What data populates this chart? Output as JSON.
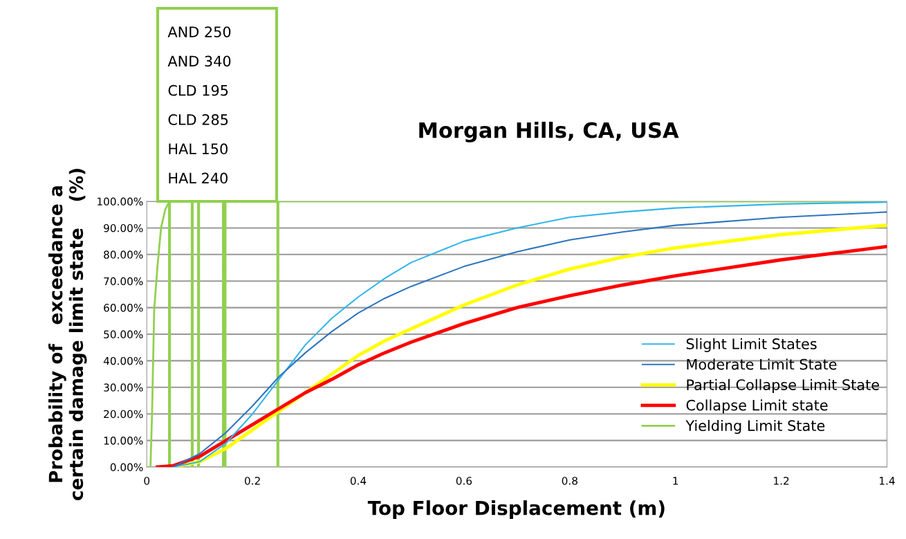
{
  "chart_data": {
    "type": "line",
    "title": "Morgan Hills, CA, USA",
    "xlabel": "Top Floor Displacement (m)",
    "ylabel": "Probability of   exceedance a\ncertain damage limit state    (%)",
    "xlim": [
      0,
      1.4
    ],
    "xticks": [
      0,
      0.2,
      0.4,
      0.6,
      0.8,
      1,
      1.2,
      1.4
    ],
    "ylim": [
      0,
      100
    ],
    "yticks": [
      {
        "value": 0,
        "label": "0.00%"
      },
      {
        "value": 10,
        "label": "10.00%"
      },
      {
        "value": 20,
        "label": "20.00%"
      },
      {
        "value": 30,
        "label": "30.00%"
      },
      {
        "value": 40,
        "label": "40.00%"
      },
      {
        "value": 50,
        "label": "50.00%"
      },
      {
        "value": 60,
        "label": "60.00%"
      },
      {
        "value": 70,
        "label": "70.00%"
      },
      {
        "value": 80,
        "label": "80.00%"
      },
      {
        "value": 90,
        "label": "90.00%"
      },
      {
        "value": 100,
        "label": "100.00%"
      }
    ],
    "grid": "y",
    "legend": "right",
    "marker": "none",
    "line_style": "solid",
    "series": [
      {
        "name": "Slight Limit States",
        "color": "#33b5ea",
        "x": [
          0.05,
          0.1,
          0.15,
          0.2,
          0.25,
          0.3,
          0.35,
          0.4,
          0.45,
          0.5,
          0.55,
          0.6,
          0.7,
          0.8,
          0.9,
          1.0,
          1.2,
          1.4
        ],
        "values": [
          0,
          2,
          9,
          20,
          33,
          46,
          56,
          64,
          71,
          77,
          81,
          85,
          90,
          94,
          96,
          97.5,
          99,
          99.7
        ]
      },
      {
        "name": "Moderate Limit State",
        "color": "#2e75c0",
        "x": [
          0.05,
          0.1,
          0.15,
          0.2,
          0.25,
          0.3,
          0.35,
          0.4,
          0.45,
          0.5,
          0.6,
          0.7,
          0.8,
          0.9,
          1.0,
          1.2,
          1.4
        ],
        "values": [
          0,
          5,
          13,
          23,
          34,
          43,
          51,
          58,
          63.5,
          68,
          75.5,
          81,
          85.5,
          88.5,
          91,
          94,
          96
        ]
      },
      {
        "name": "Partial Collapse Limit State",
        "color": "#ffff00",
        "x": [
          0.05,
          0.1,
          0.15,
          0.2,
          0.25,
          0.3,
          0.35,
          0.4,
          0.45,
          0.5,
          0.6,
          0.7,
          0.8,
          0.9,
          1.0,
          1.2,
          1.4
        ],
        "values": [
          0,
          2,
          7,
          14,
          21,
          28,
          35,
          42,
          47.5,
          52,
          61,
          68.5,
          74.5,
          79,
          82.5,
          87.5,
          91
        ]
      },
      {
        "name": "Collapse Limit state",
        "color": "#ff0000",
        "x": [
          0.02,
          0.05,
          0.1,
          0.15,
          0.2,
          0.25,
          0.3,
          0.35,
          0.4,
          0.45,
          0.5,
          0.6,
          0.7,
          0.8,
          0.9,
          1.0,
          1.2,
          1.4
        ],
        "values": [
          0,
          0.5,
          4,
          10,
          16,
          22,
          28,
          33,
          38.5,
          43,
          47,
          54,
          60,
          64.5,
          68.5,
          72,
          78,
          83
        ]
      },
      {
        "name": "Yielding Limit State",
        "color": "#92d050",
        "x": [
          0.007,
          0.01,
          0.014,
          0.02,
          0.027,
          0.035,
          0.043,
          1.4
        ],
        "values": [
          0,
          20,
          59,
          75,
          90,
          97,
          100,
          100
        ]
      }
    ],
    "ref_lines": [
      {
        "axis": "x",
        "value": 0.043,
        "color": "#92d050"
      },
      {
        "axis": "x",
        "value": 0.086,
        "color": "#92d050"
      },
      {
        "axis": "x",
        "value": 0.098,
        "color": "#92d050"
      },
      {
        "axis": "x",
        "value": 0.145,
        "color": "#92d050"
      },
      {
        "axis": "x",
        "value": 0.148,
        "color": "#92d050"
      },
      {
        "axis": "x",
        "value": 0.248,
        "color": "#92d050"
      }
    ],
    "annotations": [
      "AND 250",
      "AND 340",
      "CLD 195",
      "CLD 285",
      "HAL 150",
      "HAL 240"
    ]
  }
}
